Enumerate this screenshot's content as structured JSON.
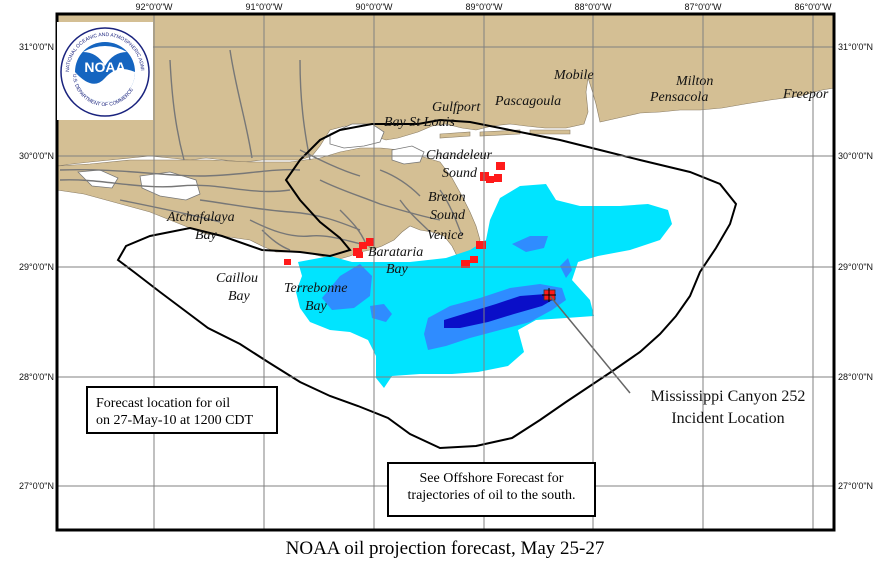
{
  "map": {
    "longitude_ticks": [
      "92°0'0\"W",
      "91°0'0\"W",
      "90°0'0\"W",
      "89°0'0\"W",
      "88°0'0\"W",
      "87°0'0\"W",
      "86°0'0\"W"
    ],
    "latitude_ticks": [
      "31°0'0\"N",
      "30°0'0\"N",
      "29°0'0\"N",
      "28°0'0\"N",
      "27°0'0\"N"
    ],
    "places": {
      "mobile": "Mobile",
      "milton": "Milton",
      "pensacola": "Pensacola",
      "freeport": "Freepor",
      "gulfport": "Gulfport",
      "pascagoula": "Pascagoula",
      "bay_st_louis": "Bay St Louis",
      "chandeleur_sound_1": "Chandeleur",
      "chandeleur_sound_2": "Sound",
      "breton_sound_1": "Breton",
      "breton_sound_2": "Sound",
      "venice": "Venice",
      "atchafalaya_bay_1": "Atchafalaya",
      "atchafalaya_bay_2": "Bay",
      "barataria_bay_1": "Barataria",
      "barataria_bay_2": "Bay",
      "caillou_bay_1": "Caillou",
      "caillou_bay_2": "Bay",
      "terrebonne_bay_1": "Terrebonne",
      "terrebonne_bay_2": "Bay"
    },
    "incident_label_1": "Mississippi Canyon 252",
    "incident_label_2": "Incident Location",
    "colors": {
      "land": "#d4bf94",
      "water": "#ffffff",
      "oil_light": "#00e4ff",
      "oil_medium": "#2f8cff",
      "oil_heavy": "#0a0ec8",
      "shoreline_oil": "#ff1a1a",
      "coast_network": "#777777"
    }
  },
  "logo": {
    "wordmark": "NOAA",
    "ring_text_top": "NATIONAL OCEANIC AND ATMOSPHERIC ADMINISTRATION",
    "ring_text_bottom": "U.S. DEPARTMENT OF COMMERCE"
  },
  "forecast_box": {
    "line1": "Forecast location for oil",
    "line2": "on 27-May-10 at 1200 CDT"
  },
  "offshore_box": {
    "line1": "See Offshore Forecast for",
    "line2": "trajectories of oil to the south."
  },
  "caption": "NOAA oil projection forecast, May 25-27"
}
